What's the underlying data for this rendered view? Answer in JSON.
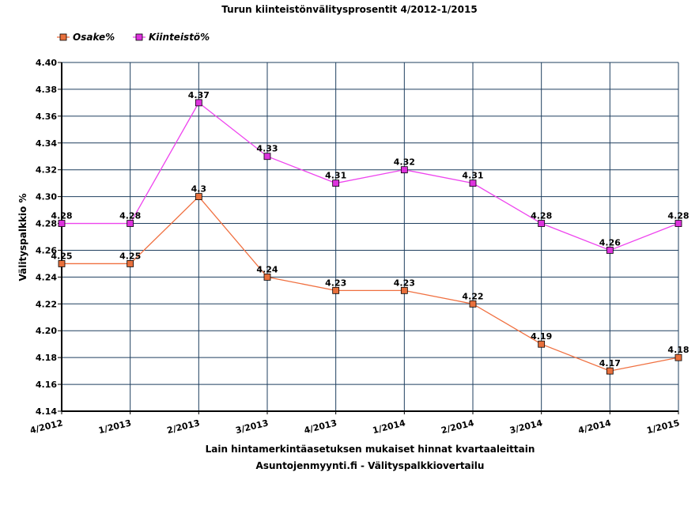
{
  "chart_data": {
    "type": "line",
    "title": "Turun kiinteistönvälitysprosentit 4/2012-1/2015",
    "xlabel": "Lain hintamerkintäasetuksen mukaiset hinnat kvartaaleittain",
    "subtitle": "Asuntojenmyynti.fi - Välityspalkkiovertailu",
    "ylabel": "Välityspalkkio %",
    "categories": [
      "4/2012",
      "1/2013",
      "2/2013",
      "3/2013",
      "4/2013",
      "1/2014",
      "2/2014",
      "3/2014",
      "4/2014",
      "1/2015"
    ],
    "ylim": [
      4.14,
      4.4
    ],
    "yticks": [
      "4.14",
      "4.16",
      "4.18",
      "4.20",
      "4.22",
      "4.24",
      "4.26",
      "4.28",
      "4.30",
      "4.32",
      "4.34",
      "4.36",
      "4.38",
      "4.40"
    ],
    "grid": true,
    "legend_position": "top-left",
    "series": [
      {
        "name": "Osake%",
        "color": "#f07040",
        "marker_fill": "#e8703c",
        "values": [
          4.25,
          4.25,
          4.3,
          4.24,
          4.23,
          4.23,
          4.22,
          4.19,
          4.17,
          4.18
        ],
        "labels": [
          "4.25",
          "4.25",
          "4.3",
          "4.24",
          "4.23",
          "4.23",
          "4.22",
          "4.19",
          "4.17",
          "4.18"
        ]
      },
      {
        "name": "Kiinteistö%",
        "color": "#ee44ee",
        "marker_fill": "#dd33dd",
        "values": [
          4.28,
          4.28,
          4.37,
          4.33,
          4.31,
          4.32,
          4.31,
          4.28,
          4.26,
          4.28
        ],
        "labels": [
          "4.28",
          "4.28",
          "4.37",
          "4.33",
          "4.31",
          "4.32",
          "4.31",
          "4.28",
          "4.26",
          "4.28"
        ]
      }
    ],
    "grid_color": "#1f3f5f",
    "axis_color": "#000000"
  }
}
